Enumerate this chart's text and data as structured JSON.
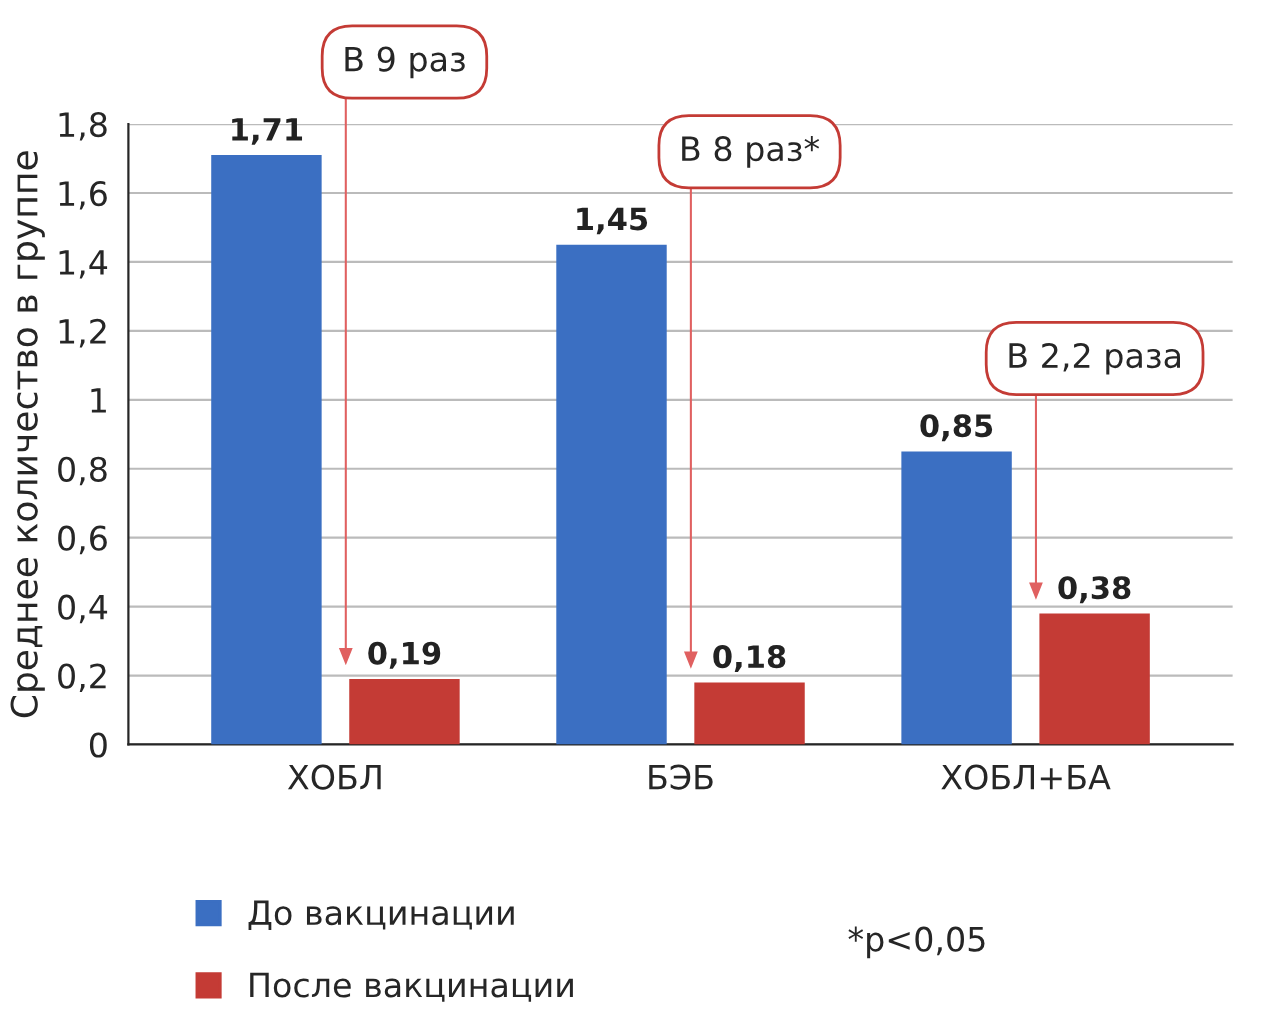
{
  "chart_data": {
    "type": "bar",
    "ylabel": "Среднее количество в группе",
    "categories": [
      "ХОБЛ",
      "БЭБ",
      "ХОБЛ+БА"
    ],
    "series": [
      {
        "name": "До вакцинации",
        "color": "#3b6fc2",
        "values": [
          1.71,
          1.45,
          0.85
        ],
        "value_labels": [
          "1,71",
          "1,45",
          "0,85"
        ]
      },
      {
        "name": "После вакцинации",
        "color": "#c43b35",
        "values": [
          0.19,
          0.18,
          0.38
        ],
        "value_labels": [
          "0,19",
          "0,18",
          "0,38"
        ]
      }
    ],
    "ylim": [
      0,
      1.8
    ],
    "yticks": [
      0,
      {
        "value": 0.2,
        "label": "0,2"
      },
      {
        "value": 0.4,
        "label": "0,4"
      },
      {
        "value": 0.6,
        "label": "0,6"
      },
      {
        "value": 0.8,
        "label": "0,8"
      },
      1,
      {
        "value": 1.2,
        "label": "1,2"
      },
      {
        "value": 1.4,
        "label": "1,4"
      },
      {
        "value": 1.6,
        "label": "1,6"
      },
      {
        "value": 1.8,
        "label": "1,8"
      }
    ],
    "grid": "y",
    "legend": "bottom left",
    "annotations": [
      "В 9 раз",
      "В 8 раз*",
      "В 2,2 раза",
      "*p<0,05"
    ]
  }
}
